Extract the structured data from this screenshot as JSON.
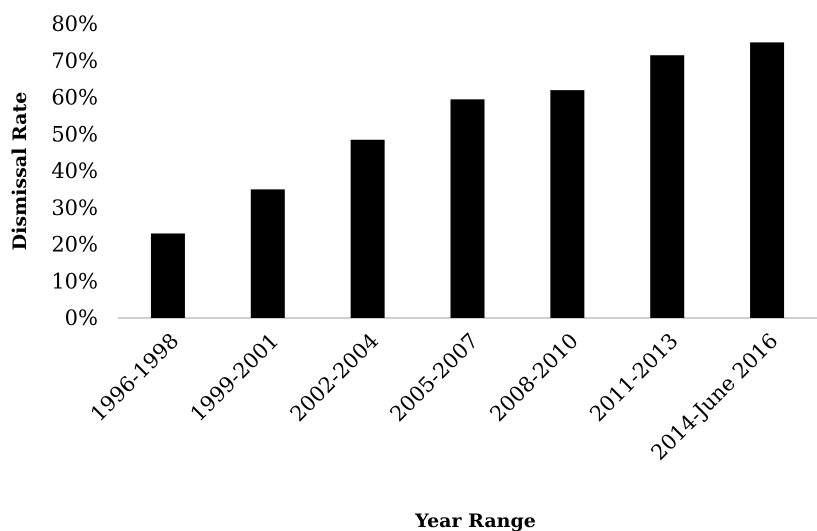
{
  "chart_data": {
    "type": "bar",
    "title": "",
    "xlabel": "Year Range",
    "ylabel": "Dismissal Rate",
    "categories": [
      "1996-1998",
      "1999-2001",
      "2002-2004",
      "2005-2007",
      "2008-2010",
      "2011-2013",
      "2014-June 2016"
    ],
    "values": [
      23,
      35,
      48.5,
      59.5,
      62,
      71.5,
      75
    ],
    "ylim": [
      0,
      80
    ],
    "yticks": [
      0,
      10,
      20,
      30,
      40,
      50,
      60,
      70,
      80
    ],
    "ytick_labels": [
      "0%",
      "10%",
      "20%",
      "30%",
      "40%",
      "50%",
      "60%",
      "70%",
      "80%"
    ],
    "grid": false,
    "bar_color": "#000000"
  }
}
